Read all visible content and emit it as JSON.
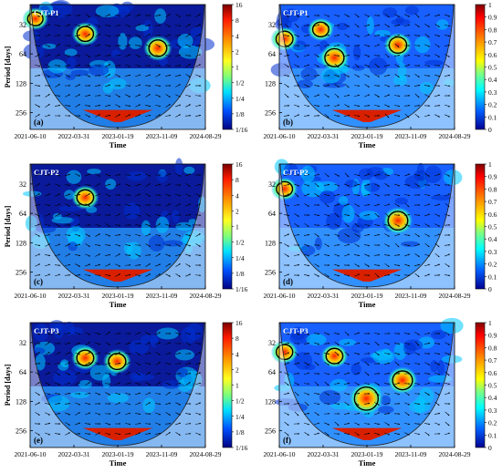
{
  "chart_data": [
    {
      "type": "heatmap",
      "panel": "(a)",
      "series_label": "CJT-P1",
      "variant": "wavelet power spectrum",
      "xlabel": "Time",
      "ylabel": "Period [days]",
      "x_ticks": [
        "2021-06-10",
        "2022-03-31",
        "2023-01-19",
        "2023-11-09",
        "2024-08-29"
      ],
      "y_ticks": [
        32,
        64,
        128,
        256
      ],
      "y_scale": "log2",
      "colorbar_ticks": [
        "16",
        "8",
        "4",
        "2",
        "1",
        "1/2",
        "1/4",
        "1/8",
        "1/16"
      ],
      "colorbar_range": [
        "1/16",
        "16"
      ],
      "significant_regions": [
        {
          "time": "2021-07",
          "period_days": 28
        },
        {
          "time": "2022-06",
          "period_days": 40
        },
        {
          "time": "2023-10",
          "period_days": 56
        }
      ]
    },
    {
      "type": "heatmap",
      "panel": "(b)",
      "series_label": "CJT-P1",
      "variant": "wavelet coherence",
      "xlabel": "Time",
      "ylabel": "",
      "x_ticks": [
        "2021-06-10",
        "2022-03-31",
        "2023-01-19",
        "2023-11-09",
        "2024-08-29"
      ],
      "y_ticks": [
        32,
        64,
        128,
        256
      ],
      "y_scale": "log2",
      "colorbar_ticks": [
        "1",
        "0.9",
        "0.8",
        "0.7",
        "0.6",
        "0.5",
        "0.4",
        "0.3",
        "0.2",
        "0.1",
        "0"
      ],
      "colorbar_range": [
        0,
        1
      ],
      "significant_regions": [
        {
          "time": "2021-07",
          "period_days": 45
        },
        {
          "time": "2022-03",
          "period_days": 36
        },
        {
          "time": "2023-08",
          "period_days": 52
        },
        {
          "time": "2022-06",
          "period_days": 70
        }
      ]
    },
    {
      "type": "heatmap",
      "panel": "(c)",
      "series_label": "CJT-P2",
      "variant": "wavelet power spectrum",
      "xlabel": "Time",
      "ylabel": "Period [days]",
      "x_ticks": [
        "2021-06-10",
        "2022-03-31",
        "2023-01-19",
        "2023-11-09",
        "2024-08-29"
      ],
      "y_ticks": [
        32,
        64,
        128,
        256
      ],
      "y_scale": "log2",
      "colorbar_ticks": [
        "16",
        "8",
        "4",
        "2",
        "1",
        "1/2",
        "1/4",
        "1/8",
        "1/16"
      ],
      "colorbar_range": [
        "1/16",
        "16"
      ],
      "significant_regions": [
        {
          "time": "2022-06",
          "period_days": 44
        }
      ]
    },
    {
      "type": "heatmap",
      "panel": "(d)",
      "series_label": "CJT-P2",
      "variant": "wavelet coherence",
      "xlabel": "Time",
      "ylabel": "",
      "x_ticks": [
        "2021-06-10",
        "2022-03-31",
        "2023-01-19",
        "2023-11-09",
        "2024-08-29"
      ],
      "y_ticks": [
        32,
        64,
        128,
        256
      ],
      "y_scale": "log2",
      "colorbar_ticks": [
        "1",
        "0.9",
        "0.8",
        "0.7",
        "0.6",
        "0.5",
        "0.4",
        "0.3",
        "0.2",
        "0.1",
        "0"
      ],
      "colorbar_range": [
        0,
        1
      ],
      "significant_regions": [
        {
          "time": "2021-07",
          "period_days": 36
        },
        {
          "time": "2023-08",
          "period_days": 76
        }
      ]
    },
    {
      "type": "heatmap",
      "panel": "(e)",
      "series_label": "CJT-P3",
      "variant": "wavelet power spectrum",
      "xlabel": "Time",
      "ylabel": "Period [days]",
      "x_ticks": [
        "2021-06-10",
        "2022-03-31",
        "2023-01-19",
        "2023-11-09",
        "2024-08-29"
      ],
      "y_ticks": [
        32,
        64,
        128,
        256
      ],
      "y_scale": "log2",
      "colorbar_ticks": [
        "16",
        "8",
        "4",
        "2",
        "1",
        "1/2",
        "1/4",
        "1/8",
        "1/16"
      ],
      "colorbar_range": [
        "1/16",
        "16"
      ],
      "significant_regions": [
        {
          "time": "2022-06",
          "period_days": 46
        },
        {
          "time": "2023-01",
          "period_days": 50
        }
      ]
    },
    {
      "type": "heatmap",
      "panel": "(f)",
      "series_label": "CJT-P3",
      "variant": "wavelet coherence",
      "xlabel": "Time",
      "ylabel": "",
      "x_ticks": [
        "2021-06-10",
        "2022-03-31",
        "2023-01-19",
        "2023-11-09",
        "2024-08-29"
      ],
      "y_ticks": [
        32,
        64,
        128,
        256
      ],
      "y_scale": "log2",
      "colorbar_ticks": [
        "1",
        "0.9",
        "0.8",
        "0.7",
        "0.6",
        "0.5",
        "0.4",
        "0.3",
        "0.2",
        "0.1",
        "0"
      ],
      "colorbar_range": [
        0,
        1
      ],
      "significant_regions": [
        {
          "time": "2021-07",
          "period_days": 40
        },
        {
          "time": "2022-06",
          "period_days": 44
        },
        {
          "time": "2023-01",
          "period_days": 120
        },
        {
          "time": "2023-09",
          "period_days": 78
        }
      ]
    }
  ]
}
